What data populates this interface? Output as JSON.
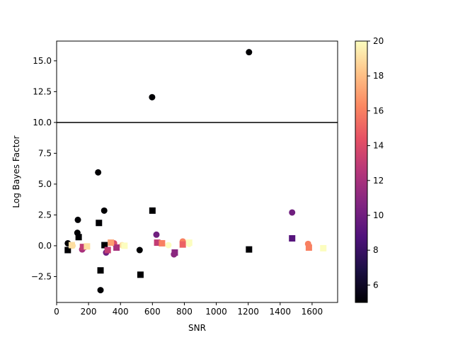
{
  "chart_data": {
    "type": "scatter",
    "title": "",
    "xlabel": "SNR",
    "ylabel": "Log Bayes Factor",
    "xlim": [
      0,
      1760
    ],
    "ylim": [
      -4.6,
      16.6
    ],
    "xticks": [
      0,
      200,
      400,
      600,
      800,
      1000,
      1200,
      1400,
      1600
    ],
    "yticks": [
      -2.5,
      0.0,
      2.5,
      5.0,
      7.5,
      10.0,
      12.5,
      15.0
    ],
    "ytick_labels": [
      "−2.5",
      "0.0",
      "2.5",
      "5.0",
      "7.5",
      "10.0",
      "12.5",
      "15.0"
    ],
    "threshold_line": {
      "y": 10.0,
      "color": "#000000"
    },
    "colormap": {
      "name": "magma",
      "vmin": 5,
      "vmax": 20,
      "ticks": [
        6,
        8,
        10,
        12,
        14,
        16,
        18,
        20
      ]
    },
    "series": [
      {
        "marker": "circle",
        "points": [
          {
            "x": 1205,
            "y": 15.7,
            "c": 5
          },
          {
            "x": 598,
            "y": 12.05,
            "c": 5
          },
          {
            "x": 260,
            "y": 5.95,
            "c": 5
          },
          {
            "x": 298,
            "y": 2.85,
            "c": 5
          },
          {
            "x": 133,
            "y": 2.1,
            "c": 5
          },
          {
            "x": 130,
            "y": 1.05,
            "c": 5
          },
          {
            "x": 70,
            "y": 0.2,
            "c": 5
          },
          {
            "x": 520,
            "y": -0.35,
            "c": 5
          },
          {
            "x": 275,
            "y": -3.6,
            "c": 5
          },
          {
            "x": 1475,
            "y": 2.7,
            "c": 10
          },
          {
            "x": 625,
            "y": 0.9,
            "c": 10
          },
          {
            "x": 735,
            "y": -0.7,
            "c": 11
          },
          {
            "x": 310,
            "y": -0.55,
            "c": 10
          },
          {
            "x": 160,
            "y": -0.3,
            "c": 12
          },
          {
            "x": 360,
            "y": 0.2,
            "c": 14
          },
          {
            "x": 790,
            "y": 0.35,
            "c": 16
          },
          {
            "x": 1575,
            "y": 0.15,
            "c": 16
          },
          {
            "x": 100,
            "y": 0.0,
            "c": 19
          },
          {
            "x": 410,
            "y": 0.05,
            "c": 19
          },
          {
            "x": 700,
            "y": 0.05,
            "c": 20
          },
          {
            "x": 830,
            "y": 0.15,
            "c": 20
          }
        ]
      },
      {
        "marker": "square",
        "points": [
          {
            "x": 600,
            "y": 2.85,
            "c": 5
          },
          {
            "x": 265,
            "y": 1.85,
            "c": 5
          },
          {
            "x": 138,
            "y": 0.7,
            "c": 5
          },
          {
            "x": 300,
            "y": 0.05,
            "c": 5
          },
          {
            "x": 70,
            "y": -0.35,
            "c": 5
          },
          {
            "x": 1205,
            "y": -0.3,
            "c": 5
          },
          {
            "x": 275,
            "y": -2.0,
            "c": 5
          },
          {
            "x": 525,
            "y": -2.35,
            "c": 5
          },
          {
            "x": 1475,
            "y": 0.6,
            "c": 9
          },
          {
            "x": 740,
            "y": -0.55,
            "c": 11
          },
          {
            "x": 375,
            "y": -0.15,
            "c": 12
          },
          {
            "x": 320,
            "y": -0.35,
            "c": 13
          },
          {
            "x": 165,
            "y": -0.1,
            "c": 13
          },
          {
            "x": 630,
            "y": 0.25,
            "c": 13
          },
          {
            "x": 790,
            "y": 0.1,
            "c": 15
          },
          {
            "x": 1580,
            "y": -0.15,
            "c": 16
          },
          {
            "x": 660,
            "y": 0.2,
            "c": 16
          },
          {
            "x": 340,
            "y": 0.25,
            "c": 17
          },
          {
            "x": 95,
            "y": 0.05,
            "c": 19
          },
          {
            "x": 190,
            "y": -0.05,
            "c": 19
          },
          {
            "x": 425,
            "y": 0.0,
            "c": 20
          },
          {
            "x": 830,
            "y": 0.25,
            "c": 20
          },
          {
            "x": 1670,
            "y": -0.2,
            "c": 20
          }
        ]
      }
    ],
    "legend": "none",
    "grid": false
  }
}
